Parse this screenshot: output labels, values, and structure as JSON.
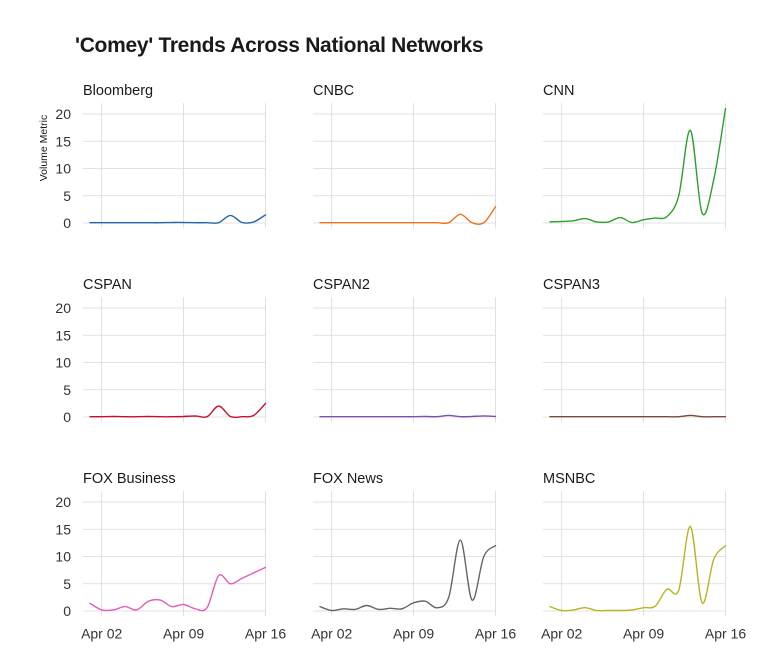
{
  "chart_data": {
    "type": "line",
    "title": "'Comey' Trends Across National Networks",
    "ylabel": "Volume Metric",
    "xlabel": "",
    "ylim": [
      -1,
      22
    ],
    "y_ticks": [
      0,
      5,
      10,
      15,
      20
    ],
    "x_tick_labels": [
      "Apr 02",
      "Apr 09",
      "Apr 16"
    ],
    "x": [
      "Apr 01",
      "Apr 02",
      "Apr 03",
      "Apr 04",
      "Apr 05",
      "Apr 06",
      "Apr 07",
      "Apr 08",
      "Apr 09",
      "Apr 10",
      "Apr 11",
      "Apr 12",
      "Apr 13",
      "Apr 14",
      "Apr 15",
      "Apr 16"
    ],
    "facets": [
      {
        "name": "Bloomberg",
        "color": "#2166ac",
        "values": [
          0.05,
          0.05,
          0.05,
          0.05,
          0.05,
          0.05,
          0.05,
          0.1,
          0.1,
          0.05,
          0.05,
          0.05,
          1.4,
          0.1,
          0.2,
          1.5
        ]
      },
      {
        "name": "CNBC",
        "color": "#f07020",
        "values": [
          0.05,
          0.05,
          0.05,
          0.05,
          0.05,
          0.05,
          0.05,
          0.05,
          0.05,
          0.05,
          0.05,
          0.05,
          1.6,
          0.05,
          0.05,
          3.0
        ]
      },
      {
        "name": "CNN",
        "color": "#2ca02c",
        "values": [
          0.2,
          0.3,
          0.4,
          0.8,
          0.2,
          0.2,
          1.0,
          0.1,
          0.6,
          0.9,
          1.2,
          5.0,
          17.0,
          1.8,
          8.0,
          21.0
        ]
      },
      {
        "name": "CSPAN",
        "color": "#c8102e",
        "values": [
          0.05,
          0.05,
          0.1,
          0.05,
          0.05,
          0.1,
          0.05,
          0.05,
          0.1,
          0.2,
          0.05,
          2.0,
          0.1,
          0.05,
          0.3,
          2.5
        ]
      },
      {
        "name": "CSPAN2",
        "color": "#7b4fb5",
        "values": [
          0.05,
          0.05,
          0.05,
          0.05,
          0.05,
          0.05,
          0.05,
          0.05,
          0.05,
          0.1,
          0.05,
          0.3,
          0.05,
          0.1,
          0.2,
          0.1
        ]
      },
      {
        "name": "CSPAN3",
        "color": "#7a4a3a",
        "values": [
          0.05,
          0.05,
          0.05,
          0.05,
          0.05,
          0.05,
          0.05,
          0.05,
          0.05,
          0.05,
          0.05,
          0.05,
          0.3,
          0.05,
          0.05,
          0.05
        ]
      },
      {
        "name": "FOX Business",
        "color": "#e25fb4",
        "values": [
          1.4,
          0.2,
          0.2,
          0.8,
          0.2,
          1.8,
          2.0,
          0.8,
          1.2,
          0.4,
          0.6,
          6.5,
          5.0,
          6.0,
          7.0,
          8.0
        ]
      },
      {
        "name": "FOX News",
        "color": "#666666",
        "values": [
          0.8,
          0.1,
          0.4,
          0.3,
          1.0,
          0.3,
          0.5,
          0.4,
          1.5,
          1.8,
          0.6,
          2.5,
          13.0,
          2.0,
          10.0,
          12.0
        ]
      },
      {
        "name": "MSNBC",
        "color": "#b5b521",
        "values": [
          0.8,
          0.1,
          0.2,
          0.6,
          0.1,
          0.1,
          0.1,
          0.2,
          0.6,
          0.9,
          4.0,
          3.8,
          15.5,
          1.5,
          9.5,
          12.0
        ]
      }
    ],
    "legend": "none",
    "grid": true
  }
}
